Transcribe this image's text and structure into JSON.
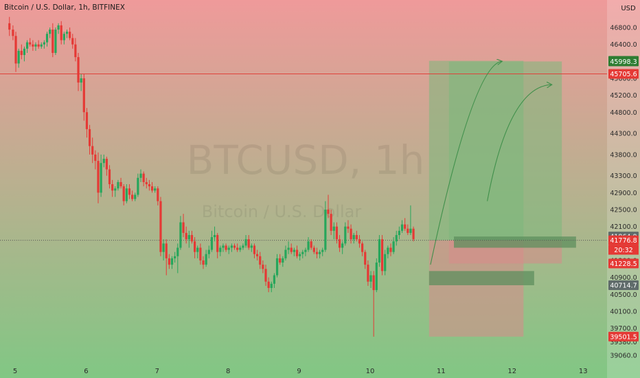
{
  "header": {
    "symbol_desc": "Bitcoin / U.S. Dollar, 1h, BITFINEX"
  },
  "watermark": {
    "symbol": "BTCUSD, 1h",
    "subtitle": "Bitcoin / U.S. Dollar"
  },
  "axis": {
    "currency": "USD"
  },
  "colors": {
    "bg_top": "#ef9a9a",
    "bg_bottom": "#81c784",
    "up": "#26a65b",
    "down": "#e53935",
    "zone_green": "#7cb87c",
    "zone_red": "#d88a8a",
    "zone_dark": "#5e8f5e",
    "arrow": "#3f8f4a",
    "hline": "#e0413a"
  },
  "chart_data": {
    "type": "candlestick",
    "x_ticks": [
      "5",
      "6",
      "7",
      "8",
      "9",
      "10",
      "11",
      "12",
      "13"
    ],
    "y_ticks": [
      39060.0,
      39380.0,
      39700.0,
      40100.0,
      40500.0,
      40900.0,
      41300.0,
      41700.0,
      42100.0,
      42500.0,
      42900.0,
      43300.0,
      43800.0,
      44300.0,
      44800.0,
      45200.0,
      45600.0,
      46000.0,
      46400.0,
      46800.0
    ],
    "y_range": [
      38900,
      47100
    ],
    "price_labels": [
      {
        "value": 46013.0,
        "text": "46013.0",
        "color": "#2e7d32"
      },
      {
        "value": 45998.3,
        "text": "45998.3",
        "color": "#2e7d32"
      },
      {
        "value": 45705.6,
        "text": "45705.6",
        "color": "#e53935"
      },
      {
        "value": 41864.9,
        "text": "41864.9",
        "color": "#5f6b6a"
      },
      {
        "value": 41776.8,
        "text": "41776.8",
        "color": "#e53935"
      },
      {
        "value": 41228.5,
        "text": "41228.5",
        "color": "#e53935"
      },
      {
        "value": 40714.7,
        "text": "40714.7",
        "color": "#5f6b6a"
      },
      {
        "value": 39501.5,
        "text": "39501.5",
        "color": "#e53935"
      }
    ],
    "countdown": "20:32",
    "horizontal_line": 45705.6,
    "current_price": 41776.8,
    "zones": [
      {
        "kind": "green",
        "day_from": 10.83,
        "day_to": 12.16,
        "price_from": 41776.8,
        "price_to": 46013.0
      },
      {
        "kind": "red",
        "day_from": 10.83,
        "day_to": 12.16,
        "price_from": 39501.5,
        "price_to": 41776.8
      },
      {
        "kind": "green",
        "day_from": 11.11,
        "day_to": 12.7,
        "price_from": 41776.8,
        "price_to": 45998.3
      },
      {
        "kind": "red",
        "day_from": 11.11,
        "day_to": 12.7,
        "price_from": 41228.5,
        "price_to": 41776.8
      },
      {
        "kind": "dark",
        "day_from": 11.18,
        "day_to": 12.9,
        "price_from": 41600.0,
        "price_to": 41864.9
      },
      {
        "kind": "dark",
        "day_from": 10.83,
        "day_to": 12.31,
        "price_from": 40714.7,
        "price_to": 41050.0
      }
    ],
    "arrows": [
      {
        "from": [
          10.85,
          41200.0
        ],
        "via": [
          11.45,
          45900.0
        ],
        "to": [
          11.85,
          46000.0
        ]
      },
      {
        "from": [
          11.65,
          42700.0
        ],
        "via": [
          11.95,
          45400.0
        ],
        "to": [
          12.55,
          45450.0
        ]
      }
    ],
    "candles": [
      [
        4.92,
        46900,
        47050,
        46600,
        46750
      ],
      [
        4.97,
        46750,
        46850,
        46500,
        46600
      ],
      [
        5.01,
        46600,
        46700,
        45750,
        45950
      ],
      [
        5.05,
        45950,
        46300,
        45850,
        46250
      ],
      [
        5.09,
        46250,
        46400,
        46050,
        46150
      ],
      [
        5.13,
        46150,
        46350,
        46000,
        46300
      ],
      [
        5.17,
        46300,
        46500,
        46200,
        46450
      ],
      [
        5.21,
        46450,
        46550,
        46350,
        46400
      ],
      [
        5.25,
        46400,
        46500,
        46250,
        46350
      ],
      [
        5.29,
        46350,
        46450,
        46250,
        46400
      ],
      [
        5.33,
        46400,
        46500,
        46300,
        46350
      ],
      [
        5.37,
        46350,
        46450,
        46300,
        46400
      ],
      [
        5.41,
        46400,
        46500,
        46300,
        46450
      ],
      [
        5.45,
        46450,
        46700,
        46350,
        46650
      ],
      [
        5.49,
        46650,
        46800,
        46550,
        46750
      ],
      [
        5.53,
        46750,
        46900,
        46100,
        46200
      ],
      [
        5.57,
        46200,
        46800,
        46150,
        46750
      ],
      [
        5.61,
        46750,
        46900,
        46650,
        46850
      ],
      [
        5.65,
        46850,
        46950,
        46400,
        46500
      ],
      [
        5.69,
        46500,
        46700,
        46400,
        46650
      ],
      [
        5.73,
        46650,
        46750,
        46550,
        46700
      ],
      [
        5.77,
        46700,
        46800,
        46500,
        46550
      ],
      [
        5.81,
        46550,
        46650,
        46300,
        46400
      ],
      [
        5.85,
        46400,
        46550,
        46000,
        46100
      ],
      [
        5.89,
        46100,
        46200,
        45300,
        45500
      ],
      [
        5.93,
        45500,
        45700,
        45300,
        45600
      ],
      [
        5.97,
        45600,
        45700,
        44600,
        44800
      ],
      [
        6.01,
        44800,
        44900,
        44200,
        44400
      ],
      [
        6.05,
        44400,
        44500,
        43800,
        44000
      ],
      [
        6.09,
        44000,
        44200,
        43600,
        43800
      ],
      [
        6.13,
        43800,
        43900,
        43450,
        43650
      ],
      [
        6.17,
        43650,
        43850,
        42650,
        42900
      ],
      [
        6.21,
        42900,
        43800,
        42800,
        43600
      ],
      [
        6.25,
        43600,
        43800,
        43500,
        43700
      ],
      [
        6.29,
        43700,
        43750,
        43300,
        43450
      ],
      [
        6.33,
        43450,
        43550,
        43000,
        43100
      ],
      [
        6.37,
        43100,
        43200,
        42800,
        42950
      ],
      [
        6.41,
        42950,
        43050,
        42800,
        43000
      ],
      [
        6.45,
        43000,
        43200,
        42950,
        43150
      ],
      [
        6.49,
        43150,
        43250,
        43000,
        43050
      ],
      [
        6.53,
        43050,
        43100,
        42600,
        42700
      ],
      [
        6.57,
        42700,
        43100,
        42650,
        43000
      ],
      [
        6.61,
        43000,
        43100,
        42750,
        42850
      ],
      [
        6.65,
        42850,
        42950,
        42700,
        42750
      ],
      [
        6.69,
        42750,
        42900,
        42700,
        42850
      ],
      [
        6.73,
        42850,
        43350,
        42800,
        43250
      ],
      [
        6.77,
        43250,
        43450,
        43150,
        43350
      ],
      [
        6.81,
        43350,
        43400,
        43050,
        43150
      ],
      [
        6.85,
        43150,
        43250,
        43000,
        43100
      ],
      [
        6.89,
        43100,
        43200,
        42950,
        43050
      ],
      [
        6.93,
        43050,
        43150,
        42900,
        42950
      ],
      [
        6.97,
        42950,
        43050,
        42900,
        43000
      ],
      [
        7.01,
        43000,
        43050,
        42600,
        42700
      ],
      [
        7.05,
        42700,
        42800,
        41400,
        41500
      ],
      [
        7.09,
        41500,
        41800,
        41300,
        41700
      ],
      [
        7.13,
        41700,
        41800,
        40950,
        41350
      ],
      [
        7.17,
        41350,
        41450,
        41100,
        41200
      ],
      [
        7.21,
        41200,
        41400,
        41100,
        41350
      ],
      [
        7.25,
        41350,
        41500,
        41250,
        41400
      ],
      [
        7.29,
        41400,
        41700,
        41000,
        41600
      ],
      [
        7.33,
        41600,
        42350,
        41550,
        42200
      ],
      [
        7.37,
        42200,
        42400,
        41850,
        41950
      ],
      [
        7.41,
        41950,
        42100,
        41700,
        41800
      ],
      [
        7.45,
        41800,
        42000,
        41600,
        41900
      ],
      [
        7.49,
        41900,
        42000,
        41700,
        41750
      ],
      [
        7.53,
        41750,
        41850,
        41350,
        41500
      ],
      [
        7.57,
        41500,
        41650,
        41350,
        41600
      ],
      [
        7.61,
        41600,
        41700,
        41200,
        41300
      ],
      [
        7.65,
        41300,
        41400,
        41100,
        41200
      ],
      [
        7.69,
        41200,
        41550,
        41150,
        41450
      ],
      [
        7.73,
        41450,
        41650,
        41350,
        41550
      ],
      [
        7.77,
        41550,
        42000,
        41500,
        41850
      ],
      [
        7.81,
        41850,
        42100,
        41750,
        41900
      ],
      [
        7.85,
        41900,
        41950,
        41350,
        41500
      ],
      [
        7.89,
        41500,
        41650,
        41400,
        41600
      ],
      [
        7.93,
        41600,
        41700,
        41500,
        41650
      ],
      [
        7.97,
        41650,
        41700,
        41500,
        41550
      ],
      [
        8.01,
        41550,
        41650,
        41450,
        41600
      ],
      [
        8.05,
        41600,
        41700,
        41500,
        41650
      ],
      [
        8.09,
        41650,
        41700,
        41550,
        41600
      ],
      [
        8.13,
        41600,
        41700,
        41500,
        41550
      ],
      [
        8.17,
        41550,
        41650,
        41500,
        41600
      ],
      [
        8.21,
        41600,
        41700,
        41550,
        41650
      ],
      [
        8.25,
        41650,
        41900,
        41600,
        41800
      ],
      [
        8.29,
        41800,
        41900,
        41550,
        41600
      ],
      [
        8.33,
        41600,
        41700,
        41500,
        41650
      ],
      [
        8.37,
        41650,
        41700,
        41350,
        41450
      ],
      [
        8.41,
        41450,
        41550,
        41300,
        41400
      ],
      [
        8.45,
        41400,
        41500,
        41100,
        41200
      ],
      [
        8.49,
        41200,
        41300,
        41000,
        41100
      ],
      [
        8.53,
        41100,
        41200,
        40700,
        40800
      ],
      [
        8.57,
        40800,
        40900,
        40550,
        40650
      ],
      [
        8.61,
        40650,
        40800,
        40550,
        40750
      ],
      [
        8.65,
        40750,
        41000,
        40650,
        40950
      ],
      [
        8.69,
        40950,
        41450,
        40900,
        41350
      ],
      [
        8.73,
        41350,
        41450,
        41200,
        41250
      ],
      [
        8.77,
        41250,
        41400,
        41150,
        41350
      ],
      [
        8.81,
        41350,
        41650,
        41300,
        41550
      ],
      [
        8.85,
        41550,
        41750,
        41450,
        41600
      ],
      [
        8.89,
        41600,
        41700,
        41450,
        41500
      ],
      [
        8.93,
        41500,
        41600,
        41400,
        41550
      ],
      [
        8.97,
        41550,
        41650,
        41350,
        41400
      ],
      [
        9.01,
        41400,
        41500,
        41300,
        41450
      ],
      [
        9.05,
        41450,
        41550,
        41350,
        41500
      ],
      [
        9.09,
        41500,
        41600,
        41400,
        41550
      ],
      [
        9.13,
        41550,
        41850,
        41500,
        41750
      ],
      [
        9.17,
        41750,
        41800,
        41550,
        41600
      ],
      [
        9.21,
        41600,
        41650,
        41450,
        41500
      ],
      [
        9.25,
        41500,
        41600,
        41350,
        41450
      ],
      [
        9.29,
        41450,
        41550,
        41350,
        41500
      ],
      [
        9.33,
        41500,
        41600,
        41400,
        41550
      ],
      [
        9.37,
        41550,
        42700,
        41500,
        42500
      ],
      [
        9.41,
        42500,
        42850,
        42300,
        42400
      ],
      [
        9.45,
        42400,
        42500,
        41900,
        42000
      ],
      [
        9.49,
        42000,
        42200,
        41800,
        42100
      ],
      [
        9.53,
        42100,
        42200,
        41700,
        41800
      ],
      [
        9.57,
        41800,
        41900,
        41500,
        41600
      ],
      [
        9.61,
        41600,
        41750,
        41450,
        41700
      ],
      [
        9.65,
        41700,
        42200,
        41650,
        42100
      ],
      [
        9.69,
        42100,
        42250,
        41950,
        42050
      ],
      [
        9.73,
        42050,
        42150,
        41700,
        41800
      ],
      [
        9.77,
        41800,
        41950,
        41700,
        41900
      ],
      [
        9.81,
        41900,
        42000,
        41750,
        41800
      ],
      [
        9.85,
        41800,
        41900,
        41600,
        41700
      ],
      [
        9.89,
        41700,
        41750,
        41400,
        41500
      ],
      [
        9.93,
        41500,
        41550,
        41100,
        41200
      ],
      [
        9.97,
        41200,
        41300,
        40700,
        40800
      ],
      [
        10.01,
        40800,
        41050,
        40650,
        40950
      ],
      [
        10.05,
        40950,
        41050,
        39500,
        40600
      ],
      [
        10.09,
        40600,
        41350,
        40550,
        41250
      ],
      [
        10.13,
        41250,
        41900,
        41150,
        41800
      ],
      [
        10.17,
        41800,
        41900,
        40950,
        41050
      ],
      [
        10.21,
        41050,
        41550,
        40950,
        41450
      ],
      [
        10.25,
        41450,
        41650,
        41350,
        41600
      ],
      [
        10.29,
        41600,
        41700,
        41400,
        41500
      ],
      [
        10.33,
        41500,
        41850,
        41450,
        41750
      ],
      [
        10.37,
        41750,
        42000,
        41650,
        41900
      ],
      [
        10.41,
        41900,
        42100,
        41800,
        42000
      ],
      [
        10.45,
        42000,
        42250,
        41950,
        42150
      ],
      [
        10.49,
        42150,
        42300,
        42000,
        42050
      ],
      [
        10.53,
        42050,
        42150,
        41900,
        41950
      ],
      [
        10.57,
        41950,
        42600,
        41900,
        42050
      ],
      [
        10.61,
        42050,
        42100,
        41750,
        41800
      ]
    ]
  }
}
